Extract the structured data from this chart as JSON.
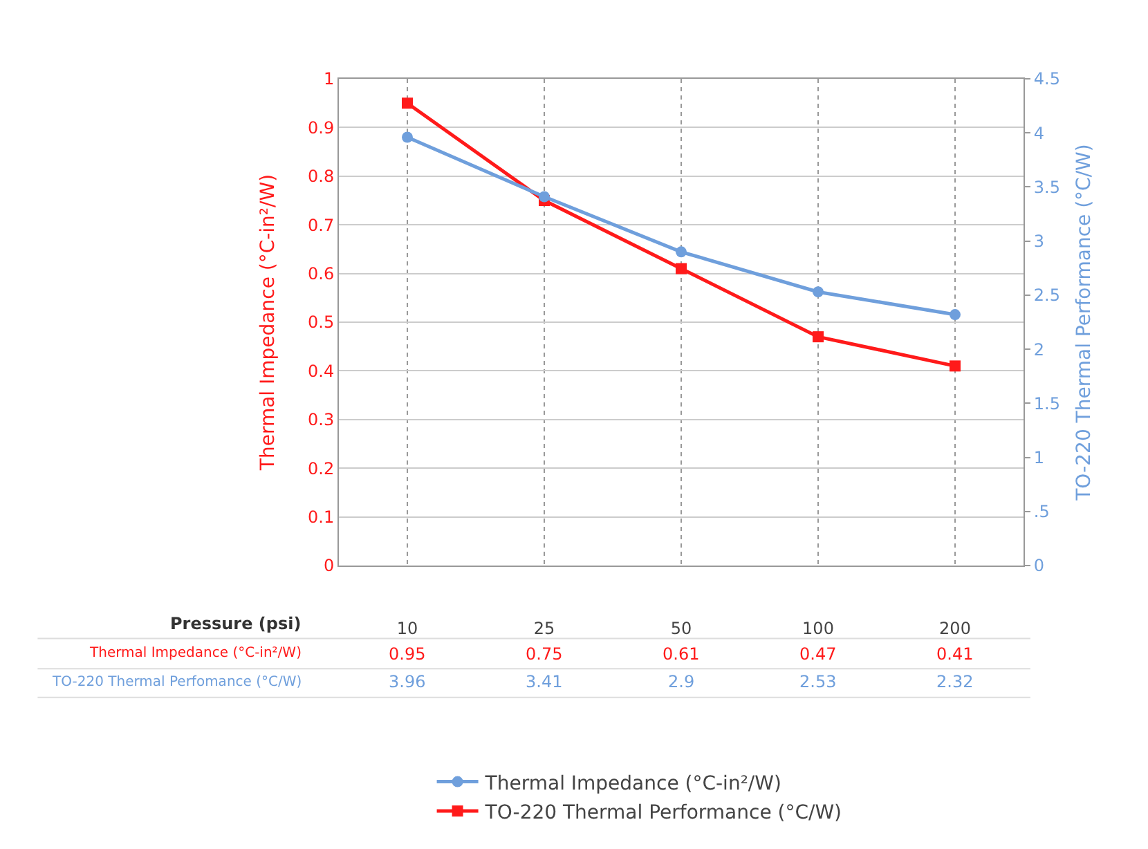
{
  "chart_data": {
    "type": "line",
    "xlabel": "Pressure (psi)",
    "ylabel": "Thermal Impedance (°C-in²/W)",
    "y2label": "TO-220 Thermal Performance (°C/W)",
    "categories": [
      "10",
      "25",
      "50",
      "100",
      "200"
    ],
    "series": [
      {
        "name": "TO-220 Thermal Performance (°C/W)",
        "color": "#ff1a1a",
        "marker": "square",
        "values": [
          0.95,
          0.75,
          0.61,
          0.47,
          0.41
        ]
      },
      {
        "name": "Thermal Impedance (°C-in²/W)",
        "color": "#6f9fdc",
        "marker": "circle",
        "axis": "y2",
        "values": [
          3.96,
          3.41,
          2.9,
          2.53,
          2.32
        ]
      }
    ],
    "annotations": [
      "Thermal Impedance (°C-in²/W)",
      "TO-220 Thermal Perfomance (°C/W)"
    ],
    "ylim": [
      0,
      1
    ],
    "yticks": [
      0,
      0.1,
      0.2,
      0.3,
      0.4,
      0.5,
      0.6,
      0.7,
      0.8,
      0.9,
      1
    ],
    "y2lim": [
      0,
      4.5
    ],
    "y2ticks": [
      0,
      {
        "value": 0.5,
        "label": ".5"
      },
      1,
      1.5,
      2,
      2.5,
      3,
      3.5,
      4,
      4.5
    ],
    "data_labels": true,
    "grid": true,
    "legend": "bottom",
    "line_style": "solid"
  }
}
